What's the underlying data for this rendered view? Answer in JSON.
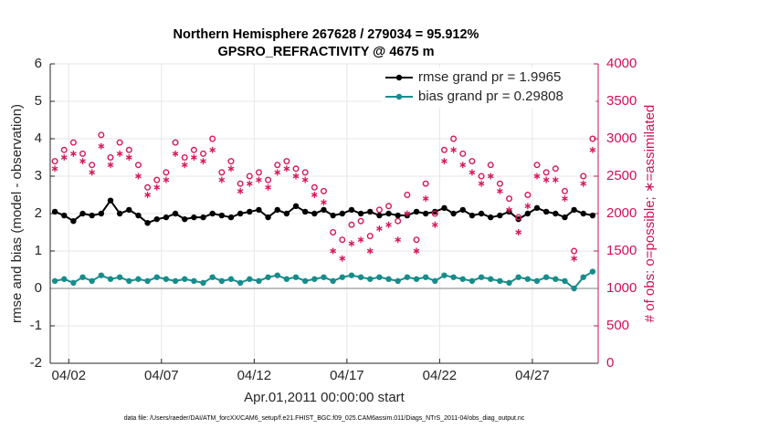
{
  "chart_data": {
    "type": "line",
    "title": "Northern Hemisphere 267628 / 279034 = 95.912%",
    "subtitle": "GPSRO_REFRACTIVITY @ 4675 m",
    "xlabel": "Apr.01,2011 00:00:00 start",
    "ylabel": "rmse and bias (model - observation)",
    "y2label": "# of obs: o=possible; ∗=assimilated",
    "footnote": "data file: /Users/raeder/DAI/ATM_forcXX/CAM6_setup/f.e21.FHIST_BGC.f09_025.CAM6assim.011/Diags_NTrS_2011-04/obs_diag_output.nc",
    "xlim": [
      1,
      30.55
    ],
    "xticks": [
      {
        "value": 2,
        "label": "04/02"
      },
      {
        "value": 7,
        "label": "04/07"
      },
      {
        "value": 12,
        "label": "04/12"
      },
      {
        "value": 17,
        "label": "04/17"
      },
      {
        "value": 22,
        "label": "04/22"
      },
      {
        "value": 27,
        "label": "04/27"
      }
    ],
    "ylim": [
      -2,
      6
    ],
    "yticks": [
      -2,
      -1,
      0,
      1,
      2,
      3,
      4,
      5,
      6
    ],
    "y2lim": [
      0,
      4000
    ],
    "y2ticks": [
      0,
      500,
      1000,
      1500,
      2000,
      2500,
      3000,
      3500,
      4000
    ],
    "grid": true,
    "legend": "upper right",
    "x": [
      1.25,
      1.75,
      2.25,
      2.75,
      3.25,
      3.75,
      4.25,
      4.75,
      5.25,
      5.75,
      6.25,
      6.75,
      7.25,
      7.75,
      8.25,
      8.75,
      9.25,
      9.75,
      10.25,
      10.75,
      11.25,
      11.75,
      12.25,
      12.75,
      13.25,
      13.75,
      14.25,
      14.75,
      15.25,
      15.75,
      16.25,
      16.75,
      17.25,
      17.75,
      18.25,
      18.75,
      19.25,
      19.75,
      20.25,
      20.75,
      21.25,
      21.75,
      22.25,
      22.75,
      23.25,
      23.75,
      24.25,
      24.75,
      25.25,
      25.75,
      26.25,
      26.75,
      27.25,
      27.75,
      28.25,
      28.75,
      29.25,
      29.75,
      30.25
    ],
    "series": [
      {
        "name": "rmse grand pr = 1.9965",
        "color": "#000000",
        "marker": "dot",
        "line": true,
        "values": [
          2.05,
          1.95,
          1.8,
          2.0,
          1.95,
          2.0,
          2.35,
          2.0,
          2.1,
          1.95,
          1.75,
          1.85,
          1.9,
          2.0,
          1.85,
          1.9,
          1.9,
          2.0,
          1.95,
          1.9,
          2.0,
          2.05,
          2.1,
          1.9,
          2.1,
          2.0,
          2.2,
          2.05,
          2.0,
          2.1,
          1.95,
          2.0,
          2.1,
          2.0,
          2.05,
          1.95,
          2.0,
          1.95,
          1.95,
          2.05,
          2.0,
          2.05,
          2.15,
          2.0,
          2.1,
          1.95,
          2.0,
          1.9,
          1.95,
          2.05,
          1.85,
          2.0,
          2.15,
          2.05,
          2.0,
          1.9,
          2.1,
          2.0,
          1.95
        ]
      },
      {
        "name": "bias grand pr = 0.29808",
        "color": "#178c8c",
        "marker": "dot",
        "line": true,
        "values": [
          0.2,
          0.25,
          0.15,
          0.3,
          0.2,
          0.35,
          0.25,
          0.3,
          0.2,
          0.25,
          0.2,
          0.3,
          0.25,
          0.2,
          0.25,
          0.2,
          0.15,
          0.3,
          0.2,
          0.25,
          0.15,
          0.25,
          0.2,
          0.3,
          0.35,
          0.25,
          0.3,
          0.2,
          0.25,
          0.3,
          0.2,
          0.3,
          0.35,
          0.3,
          0.25,
          0.3,
          0.25,
          0.2,
          0.3,
          0.25,
          0.3,
          0.2,
          0.35,
          0.3,
          0.25,
          0.2,
          0.3,
          0.25,
          0.2,
          0.15,
          0.3,
          0.25,
          0.2,
          0.3,
          0.25,
          0.2,
          0.0,
          0.3,
          0.45
        ]
      },
      {
        "color": "#d6185c",
        "marker": "circle",
        "line": false,
        "axis": "y2",
        "values": [
          2700,
          2850,
          2950,
          2800,
          2650,
          3050,
          2750,
          2950,
          2850,
          2650,
          2350,
          2450,
          2550,
          2950,
          2750,
          2850,
          2800,
          3000,
          2550,
          2700,
          2400,
          2500,
          2550,
          2450,
          2650,
          2700,
          2600,
          2550,
          2350,
          2300,
          1750,
          1650,
          1850,
          1900,
          1700,
          2050,
          2100,
          1900,
          2250,
          1650,
          2400,
          2000,
          2850,
          3000,
          2800,
          2700,
          2500,
          2650,
          2400,
          2200,
          1950,
          2250,
          2650,
          2550,
          2600,
          2300,
          1500,
          2500,
          3000
        ]
      },
      {
        "color": "#d6185c",
        "marker": "asterisk",
        "line": false,
        "axis": "y2",
        "values": [
          2600,
          2750,
          2800,
          2700,
          2550,
          2900,
          2650,
          2800,
          2750,
          2500,
          2250,
          2350,
          2450,
          2800,
          2650,
          2750,
          2700,
          2850,
          2450,
          2600,
          2300,
          2400,
          2450,
          2350,
          2550,
          2600,
          2500,
          2450,
          2250,
          2150,
          1500,
          1400,
          1600,
          1650,
          1500,
          1800,
          1850,
          1650,
          2000,
          1500,
          2200,
          1850,
          2700,
          2850,
          2650,
          2550,
          2400,
          2500,
          2300,
          2050,
          1750,
          2100,
          2500,
          2450,
          2450,
          2200,
          1400,
          2400,
          2850
        ]
      }
    ]
  }
}
